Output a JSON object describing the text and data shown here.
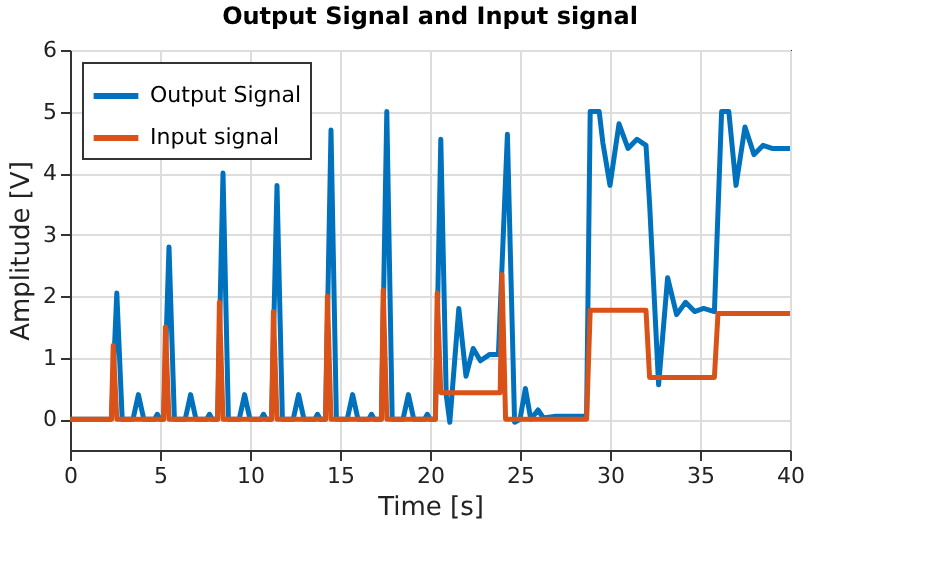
{
  "chart_data": {
    "type": "line",
    "title": "Output Signal and Input signal",
    "xlabel": "Time [s]",
    "ylabel": "Amplitude [V]",
    "xlim": [
      0,
      40
    ],
    "xticks": [
      0,
      5,
      10,
      15,
      20,
      25,
      30,
      35,
      40
    ],
    "ylim": [
      -0.5,
      6
    ],
    "yticks": [
      0,
      1,
      2,
      3,
      4,
      5,
      6
    ],
    "grid": true,
    "legend": "top left",
    "line_style": "solid",
    "marker": "none",
    "series": [
      {
        "name": "Output Signal",
        "color": "#0072bd",
        "x": [
          0,
          2.3,
          2.6,
          2.9,
          3.5,
          3.8,
          4.1,
          4.7,
          4.85,
          5.0,
          5.2,
          5.5,
          5.8,
          6.4,
          6.7,
          7.0,
          7.6,
          7.75,
          7.9,
          8.2,
          8.5,
          8.8,
          9.4,
          9.7,
          10.0,
          10.6,
          10.75,
          10.9,
          11.2,
          11.5,
          11.8,
          12.4,
          12.7,
          13.0,
          13.6,
          13.75,
          13.9,
          14.2,
          14.5,
          14.8,
          15.4,
          15.7,
          16.0,
          16.6,
          16.75,
          16.9,
          17.3,
          17.6,
          17.9,
          18.5,
          18.8,
          19.1,
          19.7,
          19.85,
          20.0,
          20.3,
          20.6,
          20.9,
          21.1,
          21.6,
          22.0,
          22.4,
          22.8,
          23.3,
          23.8,
          24.3,
          24.7,
          25.0,
          25.3,
          25.6,
          26.0,
          26.3,
          27.0,
          28.7,
          28.9,
          29.4,
          29.6,
          30.0,
          30.5,
          31.0,
          31.5,
          32.0,
          32.2,
          32.7,
          33.2,
          33.7,
          34.2,
          34.7,
          35.2,
          35.8,
          36.2,
          36.6,
          37.0,
          37.5,
          38.0,
          38.5,
          39.0,
          40
        ],
        "values": [
          0,
          0,
          2.05,
          0,
          0,
          0.4,
          0,
          0,
          0.08,
          0,
          0,
          2.8,
          0,
          0,
          0.4,
          0,
          0,
          0.08,
          0,
          0,
          4.0,
          0,
          0,
          0.4,
          0,
          0,
          0.08,
          0,
          0,
          3.8,
          0,
          0,
          0.4,
          0,
          0,
          0.08,
          0,
          0,
          4.7,
          0,
          0,
          0.4,
          0,
          0,
          0.08,
          0,
          0,
          5.0,
          0,
          0,
          0.4,
          0,
          0,
          0.08,
          0,
          0,
          4.55,
          0.4,
          -0.05,
          1.8,
          0.7,
          1.15,
          0.95,
          1.05,
          1.05,
          4.63,
          -0.05,
          0,
          0.5,
          0,
          0.15,
          0.02,
          0.05,
          0.05,
          5.0,
          5.0,
          4.5,
          3.8,
          4.8,
          4.4,
          4.55,
          4.45,
          3.5,
          0.56,
          2.3,
          1.7,
          1.9,
          1.75,
          1.8,
          1.75,
          5.0,
          5.0,
          3.8,
          4.75,
          4.3,
          4.45,
          4.4,
          4.4
        ]
      },
      {
        "name": "Input signal",
        "color": "#d95319",
        "x": [
          0,
          2.3,
          2.4,
          2.6,
          5.2,
          5.3,
          5.5,
          8.2,
          8.3,
          8.5,
          11.2,
          11.3,
          11.5,
          14.2,
          14.3,
          14.5,
          17.3,
          17.4,
          17.6,
          20.3,
          20.4,
          20.6,
          23.9,
          24.0,
          24.2,
          28.7,
          28.9,
          32.0,
          32.2,
          35.8,
          36.0,
          40
        ],
        "values": [
          0,
          0,
          1.2,
          0,
          0,
          1.5,
          0,
          0,
          1.9,
          0,
          0,
          1.75,
          0,
          0,
          2.0,
          0,
          0,
          2.1,
          0,
          0,
          2.05,
          0.43,
          0.43,
          2.35,
          0,
          0,
          1.77,
          1.77,
          0.68,
          0.68,
          1.72,
          1.72
        ]
      }
    ]
  }
}
